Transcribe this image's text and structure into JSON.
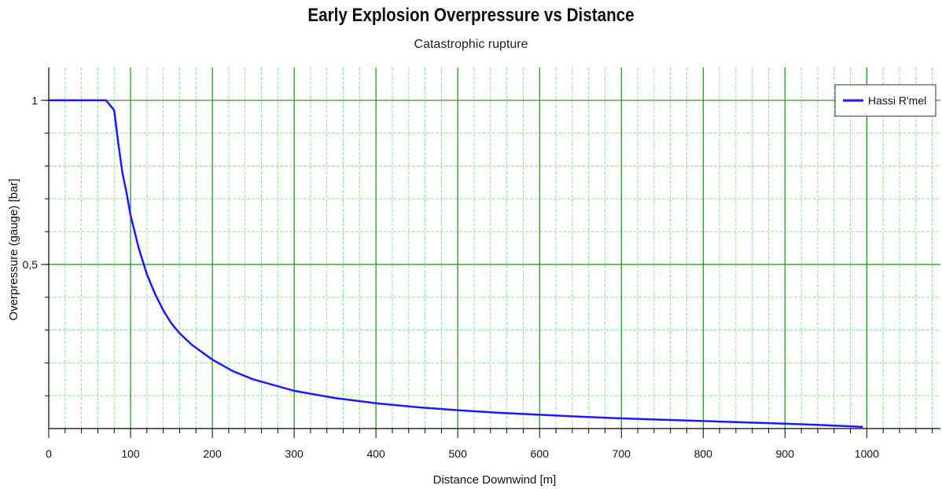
{
  "chart_data": {
    "type": "line",
    "title": "Early Explosion Overpressure vs Distance",
    "subtitle": "Catastrophic rupture",
    "xlabel": "Distance Downwind [m]",
    "ylabel": "Overpressure (gauge) [bar]",
    "xlim": [
      0,
      1090
    ],
    "ylim": [
      0,
      1.1
    ],
    "x_ticks": [
      0,
      100,
      200,
      300,
      400,
      500,
      600,
      700,
      800,
      900,
      1000
    ],
    "x_tick_labels": [
      "0",
      "100",
      "200",
      "300",
      "400",
      "500",
      "600",
      "700",
      "800",
      "900",
      "1000"
    ],
    "y_ticks": [
      0.5,
      1
    ],
    "y_tick_labels": [
      "0,5",
      "1"
    ],
    "grid": true,
    "legend_position": "top-right",
    "series": [
      {
        "name": "Hassi R'mel",
        "color": "#1a1aff",
        "x": [
          0,
          70,
          80,
          85,
          90,
          95,
          100,
          110,
          120,
          130,
          140,
          150,
          160,
          175,
          200,
          225,
          250,
          300,
          350,
          400,
          450,
          500,
          550,
          600,
          650,
          700,
          750,
          800,
          850,
          900,
          950,
          995
        ],
        "y": [
          1.0,
          1.0,
          0.97,
          0.87,
          0.78,
          0.72,
          0.65,
          0.55,
          0.47,
          0.41,
          0.36,
          0.32,
          0.29,
          0.255,
          0.21,
          0.175,
          0.15,
          0.115,
          0.093,
          0.077,
          0.065,
          0.056,
          0.048,
          0.042,
          0.036,
          0.031,
          0.027,
          0.023,
          0.019,
          0.015,
          0.01,
          0.005
        ]
      }
    ]
  },
  "colors": {
    "major_grid": "#1e8c1e",
    "minor_grid": "#8fe48f",
    "axis": "#000000"
  }
}
